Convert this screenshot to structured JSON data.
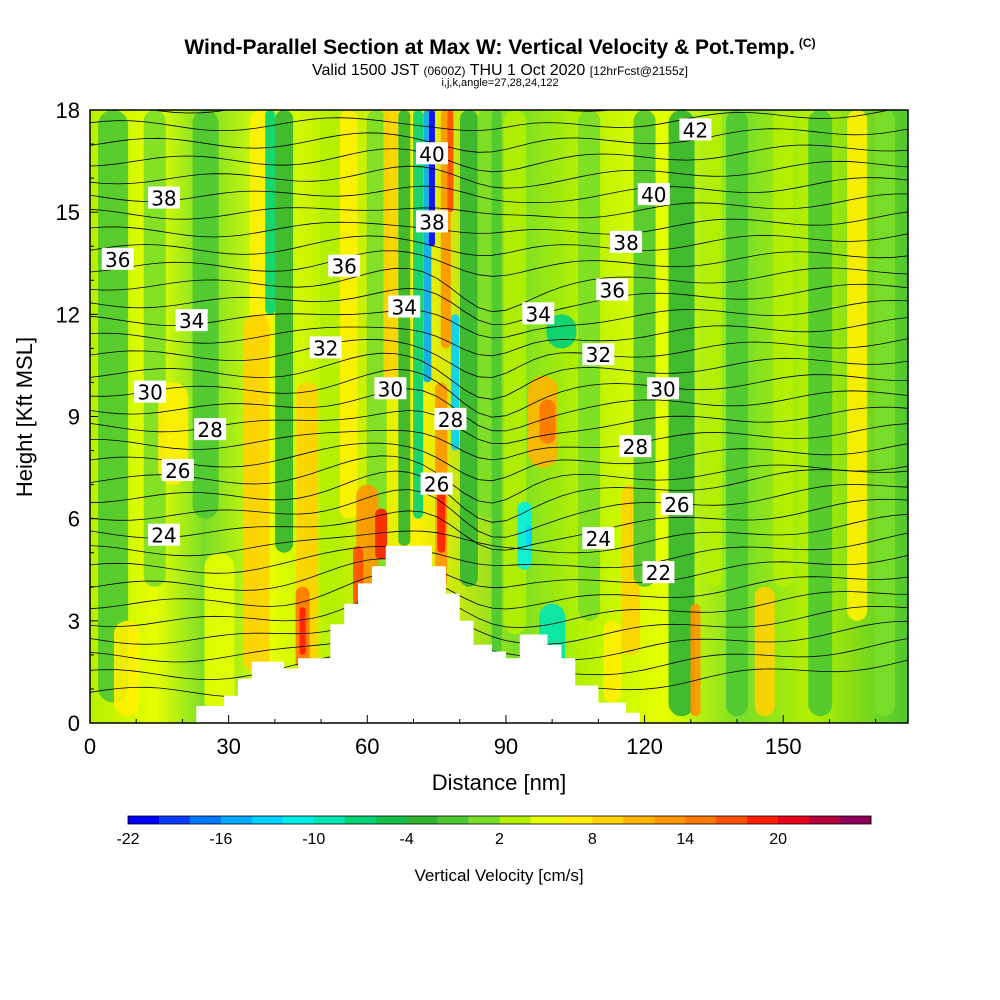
{
  "title": "Wind-Parallel Section at Max W: Vertical Velocity & Pot.Temp.",
  "title_mark": "(C)",
  "subtitle": {
    "valid": "Valid 1500 JST",
    "utc": "(0600Z)",
    "date": "THU 1 Oct 2020",
    "forecast": "[12hrFcst@2155z]"
  },
  "params": "i,j,k,angle=27,28,24,122",
  "chart_data": {
    "type": "heatmap",
    "xlabel": "Distance [nm]",
    "ylabel": "Height [Kft MSL]",
    "xlim": [
      0,
      177
    ],
    "ylim": [
      0,
      18
    ],
    "xticks": [
      0,
      30,
      60,
      90,
      120,
      150
    ],
    "xtick_labels": [
      "0",
      "30",
      "60",
      "90",
      "120",
      "150"
    ],
    "yticks": [
      0,
      3,
      6,
      9,
      12,
      15,
      18
    ],
    "ytick_labels": [
      "0",
      "3",
      "6",
      "9",
      "12",
      "15",
      "18"
    ],
    "colorbar": {
      "title": "Vertical Velocity [cm/s]",
      "min": -22,
      "max": 26,
      "step": 2,
      "tick_values": [
        -22,
        -16,
        -10,
        -4,
        2,
        8,
        14,
        20
      ],
      "tick_labels": [
        "-22",
        "-16",
        "-10",
        "-4",
        "2",
        "8",
        "14",
        "20"
      ],
      "colors": [
        "#0000ff",
        "#0a3cff",
        "#0078ff",
        "#00aaff",
        "#00d2ff",
        "#00f0e6",
        "#00e6b4",
        "#00d278",
        "#10c04a",
        "#32b432",
        "#4ec832",
        "#7ade28",
        "#b4f000",
        "#e6ff00",
        "#ffef00",
        "#ffd200",
        "#ffb400",
        "#ff9600",
        "#ff7800",
        "#ff5000",
        "#ff1e00",
        "#e6001e",
        "#b4003c",
        "#8c005a"
      ]
    },
    "terrain": [
      [
        0,
        0
      ],
      [
        23,
        0
      ],
      [
        23,
        0.5
      ],
      [
        29,
        0.5
      ],
      [
        29,
        0.8
      ],
      [
        32,
        0.8
      ],
      [
        32,
        1.3
      ],
      [
        35,
        1.3
      ],
      [
        35,
        1.8
      ],
      [
        42,
        1.8
      ],
      [
        42,
        1.6
      ],
      [
        45,
        1.6
      ],
      [
        45,
        1.9
      ],
      [
        52,
        1.9
      ],
      [
        52,
        2.9
      ],
      [
        55,
        2.9
      ],
      [
        55,
        3.5
      ],
      [
        58,
        3.5
      ],
      [
        58,
        4.1
      ],
      [
        61,
        4.1
      ],
      [
        61,
        4.6
      ],
      [
        64,
        4.6
      ],
      [
        64,
        5.2
      ],
      [
        74,
        5.2
      ],
      [
        74,
        4.6
      ],
      [
        77,
        4.6
      ],
      [
        77,
        3.8
      ],
      [
        80,
        3.8
      ],
      [
        80,
        3.0
      ],
      [
        83,
        3.0
      ],
      [
        83,
        2.3
      ],
      [
        87,
        2.3
      ],
      [
        87,
        2.1
      ],
      [
        90,
        2.1
      ],
      [
        90,
        1.9
      ],
      [
        93,
        1.9
      ],
      [
        93,
        2.6
      ],
      [
        99,
        2.6
      ],
      [
        99,
        2.3
      ],
      [
        102,
        2.3
      ],
      [
        102,
        1.9
      ],
      [
        105,
        1.9
      ],
      [
        105,
        1.1
      ],
      [
        110,
        1.1
      ],
      [
        110,
        0.6
      ],
      [
        116,
        0.6
      ],
      [
        116,
        0.3
      ],
      [
        119,
        0.3
      ],
      [
        119,
        0
      ]
    ],
    "theta_labels": [
      {
        "text": "40",
        "x": 74,
        "y": 16.7
      },
      {
        "text": "38",
        "x": 74,
        "y": 14.7
      },
      {
        "text": "42",
        "x": 131,
        "y": 17.4
      },
      {
        "text": "40",
        "x": 122,
        "y": 15.5
      },
      {
        "text": "38",
        "x": 116,
        "y": 14.1
      },
      {
        "text": "36",
        "x": 113,
        "y": 12.7
      },
      {
        "text": "38",
        "x": 16,
        "y": 15.4
      },
      {
        "text": "36",
        "x": 6,
        "y": 13.6
      },
      {
        "text": "36",
        "x": 55,
        "y": 13.4
      },
      {
        "text": "34",
        "x": 22,
        "y": 11.8
      },
      {
        "text": "34",
        "x": 68,
        "y": 12.2
      },
      {
        "text": "34",
        "x": 97,
        "y": 12.0
      },
      {
        "text": "32",
        "x": 51,
        "y": 11.0
      },
      {
        "text": "32",
        "x": 110,
        "y": 10.8
      },
      {
        "text": "30",
        "x": 13,
        "y": 9.7
      },
      {
        "text": "30",
        "x": 65,
        "y": 9.8
      },
      {
        "text": "30",
        "x": 124,
        "y": 9.8
      },
      {
        "text": "28",
        "x": 26,
        "y": 8.6
      },
      {
        "text": "28",
        "x": 78,
        "y": 8.9
      },
      {
        "text": "28",
        "x": 118,
        "y": 8.1
      },
      {
        "text": "26",
        "x": 19,
        "y": 7.4
      },
      {
        "text": "26",
        "x": 75,
        "y": 7.0
      },
      {
        "text": "26",
        "x": 127,
        "y": 6.4
      },
      {
        "text": "24",
        "x": 16,
        "y": 5.5
      },
      {
        "text": "24",
        "x": 110,
        "y": 5.4
      },
      {
        "text": "22",
        "x": 123,
        "y": 4.4
      }
    ]
  }
}
